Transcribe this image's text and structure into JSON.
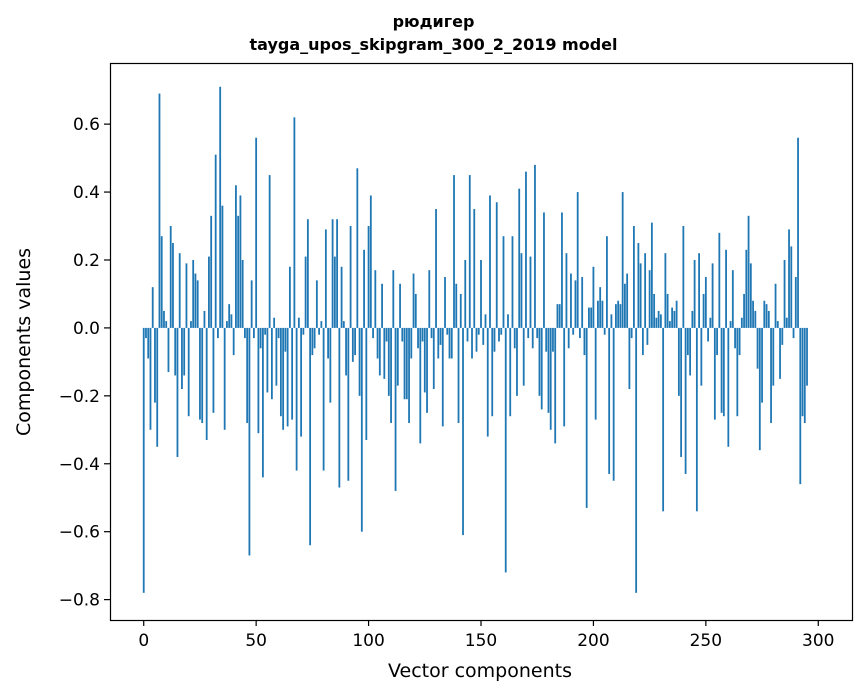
{
  "chart_data": {
    "type": "bar",
    "title_line1": "рюдигер",
    "title_line2": "tayga_upos_skipgram_300_2_2019 model",
    "xlabel": "Vector components",
    "ylabel": "Components values",
    "xlim": [
      -15,
      315
    ],
    "ylim": [
      -0.86,
      0.78
    ],
    "xticks": [
      0,
      50,
      100,
      150,
      200,
      250,
      300
    ],
    "xtick_labels": [
      "0",
      "50",
      "100",
      "150",
      "200",
      "250",
      "300"
    ],
    "yticks": [
      -0.8,
      -0.6,
      -0.4,
      -0.2,
      0.0,
      0.2,
      0.4,
      0.6
    ],
    "ytick_labels": [
      "−0.8",
      "−0.6",
      "−0.4",
      "−0.2",
      "0.0",
      "0.2",
      "0.4",
      "0.6"
    ],
    "bar_color": "#1f77b4",
    "grid": false,
    "values": [
      -0.78,
      -0.03,
      -0.09,
      -0.3,
      0.12,
      -0.22,
      -0.35,
      0.69,
      0.27,
      0.05,
      0.02,
      -0.13,
      0.3,
      0.25,
      -0.14,
      -0.38,
      0.22,
      -0.18,
      -0.14,
      0.19,
      -0.26,
      0.02,
      0.2,
      0.16,
      0.14,
      -0.27,
      -0.28,
      0.05,
      -0.33,
      0.21,
      0.33,
      -0.25,
      0.51,
      -0.03,
      0.71,
      0.36,
      -0.3,
      0.02,
      0.07,
      0.04,
      -0.08,
      0.42,
      0.33,
      0.39,
      0.2,
      -0.03,
      -0.28,
      -0.67,
      0.14,
      -0.03,
      0.56,
      -0.31,
      -0.06,
      -0.44,
      -0.02,
      -0.19,
      0.45,
      -0.21,
      0.03,
      -0.17,
      -0.03,
      -0.26,
      -0.3,
      -0.07,
      -0.29,
      0.18,
      -0.27,
      0.62,
      -0.42,
      0.03,
      -0.32,
      -0.02,
      0.21,
      0.32,
      -0.64,
      -0.08,
      -0.06,
      0.14,
      -0.02,
      0.02,
      -0.42,
      0.29,
      -0.09,
      -0.22,
      0.32,
      0.21,
      0.32,
      -0.47,
      0.18,
      0.02,
      -0.14,
      -0.45,
      0.3,
      -0.1,
      -0.08,
      0.47,
      -0.2,
      -0.6,
      0.23,
      -0.33,
      0.3,
      0.39,
      -0.03,
      0.17,
      -0.09,
      -0.14,
      0.13,
      -0.15,
      -0.04,
      -0.2,
      -0.28,
      0.17,
      -0.48,
      -0.17,
      0.13,
      -0.04,
      -0.21,
      -0.21,
      -0.28,
      -0.09,
      0.16,
      0.1,
      -0.06,
      -0.34,
      -0.04,
      -0.19,
      -0.25,
      0.17,
      -0.03,
      -0.18,
      0.35,
      -0.09,
      -0.05,
      -0.29,
      0.15,
      -0.02,
      -0.09,
      -0.09,
      0.45,
      0.13,
      -0.28,
      0.1,
      -0.61,
      0.2,
      -0.04,
      0.45,
      -0.09,
      0.35,
      -0.07,
      -0.02,
      0.2,
      -0.05,
      0.04,
      -0.32,
      0.39,
      -0.26,
      -0.07,
      0.37,
      -0.04,
      -0.02,
      0.27,
      -0.72,
      0.04,
      -0.26,
      0.27,
      -0.06,
      -0.2,
      0.41,
      0.22,
      -0.17,
      0.46,
      -0.03,
      0.21,
      -0.06,
      0.48,
      -0.03,
      -0.2,
      -0.24,
      0.34,
      -0.07,
      -0.25,
      -0.3,
      -0.07,
      -0.34,
      0.07,
      0.07,
      0.34,
      -0.29,
      0.22,
      -0.06,
      0.16,
      -0.02,
      0.14,
      0.4,
      -0.03,
      0.15,
      -0.08,
      -0.53,
      0.06,
      0.06,
      0.18,
      -0.27,
      0.08,
      0.12,
      0.08,
      -0.02,
      0.27,
      -0.43,
      0.04,
      -0.45,
      0.07,
      0.08,
      0.07,
      0.4,
      0.13,
      0.16,
      -0.18,
      -0.03,
      0.3,
      -0.78,
      0.25,
      0.19,
      -0.08,
      0.22,
      -0.05,
      0.17,
      0.31,
      0.1,
      0.03,
      0.05,
      0.04,
      -0.54,
      0.22,
      0.1,
      0.02,
      0.06,
      0.05,
      0.08,
      -0.2,
      -0.38,
      0.3,
      -0.43,
      -0.08,
      -0.14,
      0.05,
      0.2,
      -0.54,
      0.22,
      -0.17,
      0.1,
      0.15,
      -0.04,
      0.03,
      0.19,
      -0.27,
      -0.08,
      0.28,
      -0.25,
      -0.26,
      0.23,
      -0.35,
      0.02,
      0.17,
      -0.06,
      -0.26,
      -0.08,
      0.03,
      0.1,
      0.23,
      0.33,
      0.19,
      0.08,
      0.05,
      -0.12,
      -0.36,
      -0.22,
      0.08,
      0.07,
      0.05,
      -0.28,
      -0.17,
      0.13,
      0.02,
      -0.15,
      -0.05,
      0.2,
      0.03,
      0.29,
      0.24,
      -0.03,
      0.15,
      0.56,
      -0.46,
      -0.26,
      -0.28,
      -0.17
    ]
  }
}
